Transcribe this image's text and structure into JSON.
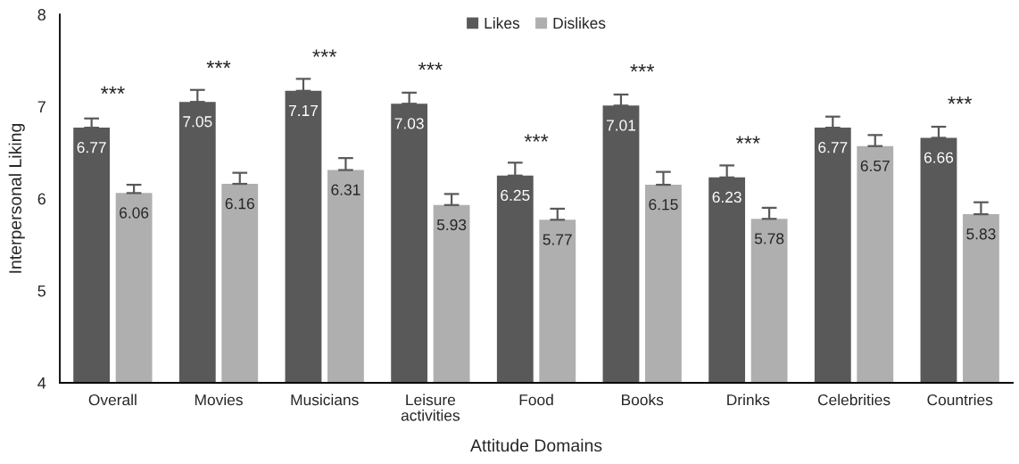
{
  "chart_data": {
    "type": "bar",
    "xlabel": "Attitude Domains",
    "ylabel": "Interpersonal Liking",
    "categories": [
      "Overall",
      "Movies",
      "Musicians",
      "Leisure activities",
      "Food",
      "Books",
      "Drinks",
      "Celebrities",
      "Countries"
    ],
    "series": [
      {
        "name": "Likes",
        "color": "#595959",
        "values": [
          6.77,
          7.05,
          7.17,
          7.03,
          6.25,
          7.01,
          6.23,
          6.77,
          6.66
        ],
        "errors": [
          [
            6.77,
            6.87
          ],
          [
            7.05,
            7.18
          ],
          [
            7.17,
            7.3
          ],
          [
            7.03,
            7.15
          ],
          [
            6.25,
            6.39
          ],
          [
            7.01,
            7.13
          ],
          [
            6.23,
            6.36
          ],
          [
            6.77,
            6.89
          ],
          [
            6.66,
            6.78
          ]
        ]
      },
      {
        "name": "Dislikes",
        "color": "#afafaf",
        "values": [
          6.06,
          6.16,
          6.31,
          5.93,
          5.77,
          6.15,
          5.78,
          6.57,
          5.83
        ],
        "errors": [
          [
            6.06,
            6.15
          ],
          [
            6.16,
            6.28
          ],
          [
            6.31,
            6.44
          ],
          [
            5.93,
            6.05
          ],
          [
            5.77,
            5.89
          ],
          [
            6.15,
            6.29
          ],
          [
            5.78,
            5.9
          ],
          [
            6.57,
            6.69
          ],
          [
            5.83,
            5.96
          ]
        ]
      }
    ],
    "ylim": [
      4,
      8
    ],
    "yticks": [
      4,
      5,
      6,
      7,
      8
    ],
    "data_labels": true,
    "legend": "top",
    "annotations": [
      {
        "text": "***",
        "x": "Overall",
        "y": 6.77
      },
      {
        "text": "***",
        "x": "Movies",
        "y": 7.05
      },
      {
        "text": "***",
        "x": "Musicians",
        "y": 7.17
      },
      {
        "text": "***",
        "x": "Leisure activities",
        "y": 7.03
      },
      {
        "text": "***",
        "x": "Food",
        "y": 6.25
      },
      {
        "text": "***",
        "x": "Books",
        "y": 7.01
      },
      {
        "text": "***",
        "x": "Drinks",
        "y": 6.23
      },
      {
        "text": "***",
        "x": "Countries",
        "y": 6.66
      }
    ]
  }
}
